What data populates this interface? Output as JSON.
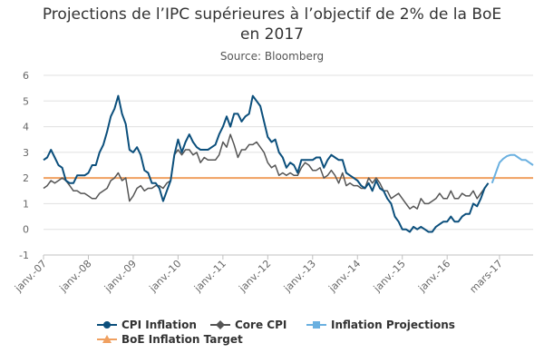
{
  "chart_data": {
    "type": "line",
    "title_line1": "Projections de l’IPC supérieures à l’objectif de 2% de la BoE",
    "title_line2": "en 2017",
    "subtitle": "Source: Bloomberg",
    "ylim": [
      -1,
      6
    ],
    "yticks": [
      "6",
      "5",
      "4",
      "3",
      "2",
      "1",
      "0",
      "-1"
    ],
    "ytick_values": [
      6,
      5,
      4,
      3,
      2,
      1,
      0,
      -1
    ],
    "xticks": [
      "janv.-07",
      "janv.-08",
      "janv.-09",
      "janv.-10",
      "janv.-11",
      "janv.-12",
      "janv.-13",
      "janv.-14",
      "janv.-15",
      "janv.-16",
      "mars-17"
    ],
    "xtick_months": [
      0,
      12,
      24,
      36,
      48,
      60,
      72,
      84,
      96,
      108,
      122
    ],
    "x_start": "2007-01",
    "grid": true,
    "legend_position": "bottom",
    "colors": {
      "cpi": "#0b4f7c",
      "core": "#555555",
      "projection": "#6ab0e0",
      "target": "#f0a060",
      "grid": "#e0e0e0",
      "axis_text": "#666666"
    },
    "series": [
      {
        "name": "CPI Inflation",
        "start_month": 0,
        "values": [
          2.7,
          2.8,
          3.1,
          2.8,
          2.5,
          2.4,
          1.9,
          1.8,
          1.8,
          2.1,
          2.1,
          2.1,
          2.2,
          2.5,
          2.5,
          3.0,
          3.3,
          3.8,
          4.4,
          4.7,
          5.2,
          4.5,
          4.1,
          3.1,
          3.0,
          3.2,
          2.9,
          2.3,
          2.2,
          1.8,
          1.8,
          1.6,
          1.1,
          1.5,
          1.9,
          2.9,
          3.5,
          3.0,
          3.4,
          3.7,
          3.4,
          3.2,
          3.1,
          3.1,
          3.1,
          3.2,
          3.3,
          3.7,
          4.0,
          4.4,
          4.0,
          4.5,
          4.5,
          4.2,
          4.4,
          4.5,
          5.2,
          5.0,
          4.8,
          4.2,
          3.6,
          3.4,
          3.5,
          3.0,
          2.8,
          2.4,
          2.6,
          2.5,
          2.2,
          2.7,
          2.7,
          2.7,
          2.7,
          2.8,
          2.8,
          2.4,
          2.7,
          2.9,
          2.8,
          2.7,
          2.7,
          2.2,
          2.1,
          2.0,
          1.9,
          1.7,
          1.6,
          1.8,
          1.5,
          1.9,
          1.6,
          1.5,
          1.2,
          1.0,
          0.5,
          0.3,
          0.0,
          0.0,
          -0.1,
          0.1,
          0.0,
          0.1,
          0.0,
          -0.1,
          -0.1,
          0.1,
          0.2,
          0.3,
          0.3,
          0.5,
          0.3,
          0.3,
          0.5,
          0.6,
          0.6,
          1.0,
          0.9,
          1.2,
          1.6,
          1.8
        ]
      },
      {
        "name": "Core CPI",
        "start_month": 0,
        "values": [
          1.6,
          1.7,
          1.9,
          1.8,
          1.9,
          2.0,
          1.9,
          1.7,
          1.5,
          1.5,
          1.4,
          1.4,
          1.3,
          1.2,
          1.2,
          1.4,
          1.5,
          1.6,
          1.9,
          2.0,
          2.2,
          1.9,
          2.0,
          1.1,
          1.3,
          1.6,
          1.7,
          1.5,
          1.6,
          1.6,
          1.7,
          1.7,
          1.6,
          1.8,
          1.9,
          2.9,
          3.1,
          2.9,
          3.1,
          3.1,
          2.9,
          3.0,
          2.6,
          2.8,
          2.7,
          2.7,
          2.7,
          2.9,
          3.4,
          3.2,
          3.7,
          3.3,
          2.8,
          3.1,
          3.1,
          3.3,
          3.3,
          3.4,
          3.2,
          3.0,
          2.6,
          2.4,
          2.5,
          2.1,
          2.2,
          2.1,
          2.2,
          2.1,
          2.1,
          2.4,
          2.6,
          2.5,
          2.3,
          2.3,
          2.4,
          2.0,
          2.1,
          2.3,
          2.1,
          1.8,
          2.2,
          1.7,
          1.8,
          1.7,
          1.7,
          1.6,
          1.6,
          2.0,
          1.8,
          2.0,
          1.8,
          1.5,
          1.5,
          1.2,
          1.3,
          1.4,
          1.2,
          1.0,
          0.8,
          0.9,
          0.8,
          1.2,
          1.0,
          1.0,
          1.1,
          1.2,
          1.4,
          1.2,
          1.2,
          1.5,
          1.2,
          1.2,
          1.4,
          1.3,
          1.3,
          1.5,
          1.2,
          1.4,
          1.6,
          1.8
        ]
      },
      {
        "name": "Inflation Projections",
        "start_month": 120,
        "values": [
          1.8,
          2.2,
          2.6,
          2.75,
          2.85,
          2.9,
          2.9,
          2.8,
          2.7,
          2.7,
          2.6,
          2.5
        ]
      },
      {
        "name": "BoE Inflation Target",
        "start_month": 0,
        "end_month": 131,
        "constant": 2.0
      }
    ]
  }
}
